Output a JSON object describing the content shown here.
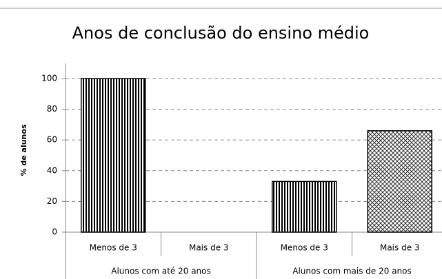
{
  "chart_data": {
    "type": "bar",
    "title": "Anos de conclusão do ensino médio",
    "y_label": "% de alunos",
    "categories": [
      "Menos de 3",
      "Mais de 3",
      "Menos de 3",
      "Mais de 3"
    ],
    "groups": [
      "Alunos com até 20 anos",
      "Alunos com mais de 20 anos"
    ],
    "values": [
      100,
      0,
      33,
      66
    ],
    "bar_patterns": [
      "vertical",
      "crosshatch",
      "vertical",
      "crosshatch"
    ],
    "ylim": [
      0,
      100
    ],
    "yticks": [
      0,
      20,
      40,
      60,
      80,
      100
    ],
    "grid": true
  }
}
